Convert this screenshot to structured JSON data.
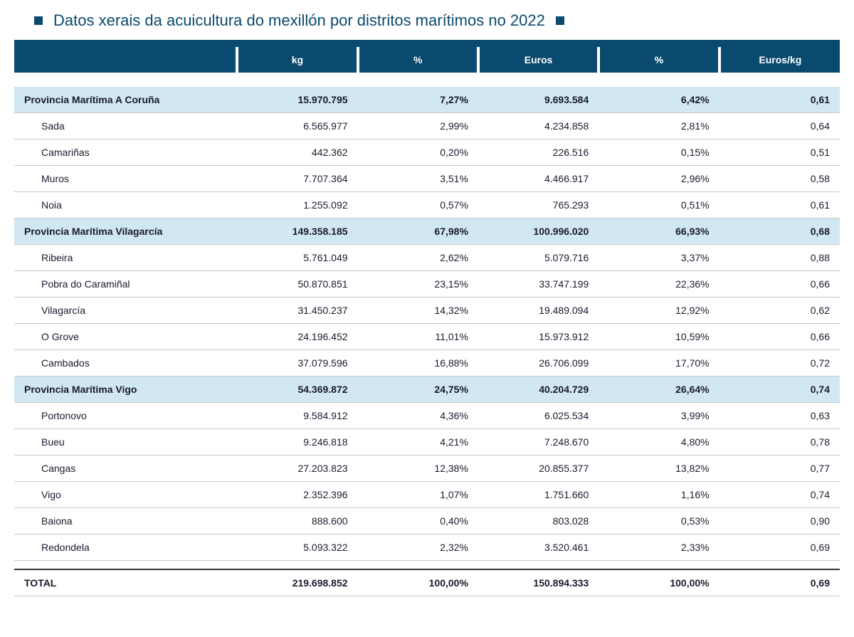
{
  "title": "Datos xerais da acuicultura do mexillón por distritos marítimos no 2022",
  "colors": {
    "header_bg": "#0a4a6e",
    "header_text": "#ffffff",
    "province_bg": "#d1e7f2",
    "row_border": "#c8c8c8",
    "total_border": "#333333",
    "title_color": "#0a4a6e"
  },
  "columns": [
    "",
    "kg",
    "%",
    "Euros",
    "%",
    "Euros/kg"
  ],
  "groups": [
    {
      "province": {
        "name": "Provincia Marítima A Coruña",
        "kg": "15.970.795",
        "pct_kg": "7,27%",
        "euros": "9.693.584",
        "pct_eur": "6,42%",
        "eurkg": "0,61"
      },
      "rows": [
        {
          "name": "Sada",
          "kg": "6.565.977",
          "pct_kg": "2,99%",
          "euros": "4.234.858",
          "pct_eur": "2,81%",
          "eurkg": "0,64"
        },
        {
          "name": "Camariñas",
          "kg": "442.362",
          "pct_kg": "0,20%",
          "euros": "226.516",
          "pct_eur": "0,15%",
          "eurkg": "0,51"
        },
        {
          "name": "Muros",
          "kg": "7.707.364",
          "pct_kg": "3,51%",
          "euros": "4.466.917",
          "pct_eur": "2,96%",
          "eurkg": "0,58"
        },
        {
          "name": "Noia",
          "kg": "1.255.092",
          "pct_kg": "0,57%",
          "euros": "765.293",
          "pct_eur": "0,51%",
          "eurkg": "0,61"
        }
      ]
    },
    {
      "province": {
        "name": "Provincia Marítima Vilagarcía",
        "kg": "149.358.185",
        "pct_kg": "67,98%",
        "euros": "100.996.020",
        "pct_eur": "66,93%",
        "eurkg": "0,68"
      },
      "rows": [
        {
          "name": "Ribeira",
          "kg": "5.761.049",
          "pct_kg": "2,62%",
          "euros": "5.079.716",
          "pct_eur": "3,37%",
          "eurkg": "0,88"
        },
        {
          "name": "Pobra do Caramiñal",
          "kg": "50.870.851",
          "pct_kg": "23,15%",
          "euros": "33.747.199",
          "pct_eur": "22,36%",
          "eurkg": "0,66"
        },
        {
          "name": "Vilagarcía",
          "kg": "31.450.237",
          "pct_kg": "14,32%",
          "euros": "19.489.094",
          "pct_eur": "12,92%",
          "eurkg": "0,62"
        },
        {
          "name": "O Grove",
          "kg": "24.196.452",
          "pct_kg": "11,01%",
          "euros": "15.973.912",
          "pct_eur": "10,59%",
          "eurkg": "0,66"
        },
        {
          "name": "Cambados",
          "kg": "37.079.596",
          "pct_kg": "16,88%",
          "euros": "26.706.099",
          "pct_eur": "17,70%",
          "eurkg": "0,72"
        }
      ]
    },
    {
      "province": {
        "name": "Provincia Marítima Vigo",
        "kg": "54.369.872",
        "pct_kg": "24,75%",
        "euros": "40.204.729",
        "pct_eur": "26,64%",
        "eurkg": "0,74"
      },
      "rows": [
        {
          "name": "Portonovo",
          "kg": "9.584.912",
          "pct_kg": "4,36%",
          "euros": "6.025.534",
          "pct_eur": "3,99%",
          "eurkg": "0,63"
        },
        {
          "name": "Bueu",
          "kg": "9.246.818",
          "pct_kg": "4,21%",
          "euros": "7.248.670",
          "pct_eur": "4,80%",
          "eurkg": "0,78"
        },
        {
          "name": "Cangas",
          "kg": "27.203.823",
          "pct_kg": "12,38%",
          "euros": "20.855.377",
          "pct_eur": "13,82%",
          "eurkg": "0,77"
        },
        {
          "name": "Vigo",
          "kg": "2.352.396",
          "pct_kg": "1,07%",
          "euros": "1.751.660",
          "pct_eur": "1,16%",
          "eurkg": "0,74"
        },
        {
          "name": "Baiona",
          "kg": "888.600",
          "pct_kg": "0,40%",
          "euros": "803.028",
          "pct_eur": "0,53%",
          "eurkg": "0,90"
        },
        {
          "name": "Redondela",
          "kg": "5.093.322",
          "pct_kg": "2,32%",
          "euros": "3.520.461",
          "pct_eur": "2,33%",
          "eurkg": "0,69"
        }
      ]
    }
  ],
  "total": {
    "name": "TOTAL",
    "kg": "219.698.852",
    "pct_kg": "100,00%",
    "euros": "150.894.333",
    "pct_eur": "100,00%",
    "eurkg": "0,69"
  }
}
